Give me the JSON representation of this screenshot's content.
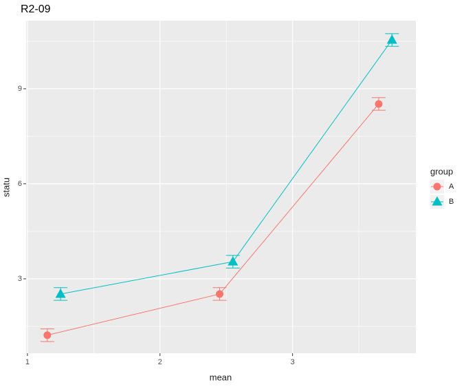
{
  "chart_data": {
    "type": "line",
    "title": "R2-09",
    "x_label": "mean",
    "y_label": "statu",
    "legend_title": "group",
    "legend_position": "right",
    "grid": true,
    "xlim": [
      0.99,
      3.93
    ],
    "xticks": [
      1,
      2,
      3
    ],
    "x_minor_ticks": [
      1.5,
      2.5,
      3.5
    ],
    "ylim": [
      0.65,
      11.15
    ],
    "yticks": [
      3,
      6,
      9
    ],
    "y_minor_ticks": [
      1.5,
      4.5,
      7.5,
      10.5
    ],
    "series": [
      {
        "name": "A",
        "color": "#f8766d",
        "shape": "circle",
        "x": [
          1.15,
          2.45,
          3.65
        ],
        "values": [
          1.22,
          2.52,
          8.52
        ],
        "errors": [
          0.2,
          0.2,
          0.2
        ]
      },
      {
        "name": "B",
        "color": "#00bfc4",
        "shape": "triangle",
        "x": [
          1.25,
          2.55,
          3.75
        ],
        "values": [
          2.52,
          3.54,
          10.54
        ],
        "errors": [
          0.2,
          0.2,
          0.2
        ]
      }
    ]
  }
}
